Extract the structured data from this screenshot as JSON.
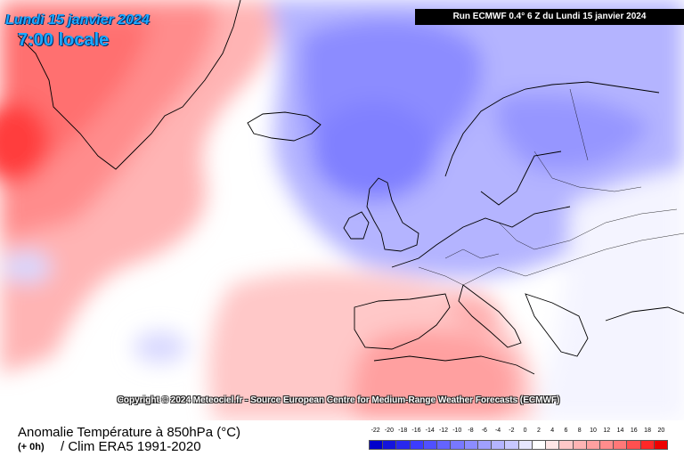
{
  "header": {
    "date_text": "Lundi 15 janvier 2024",
    "time_text": "7:00 locale",
    "run_text": "Run ECMWF 0.4° 6 Z du Lundi 15 janvier 2024"
  },
  "map": {
    "copyright": "Copyright © 2024 Meteociel.fr - Source European Centre for Medium-Range Weather Forecasts (ECMWF)"
  },
  "footer": {
    "title_line1": "Anomalie Température à 850hPa (°C)",
    "lead_time": "(+ 0h)",
    "title_line2": "/ Clim ERA5 1991-2020"
  },
  "legend": {
    "labels": [
      "-22",
      "-20",
      "-18",
      "-16",
      "-14",
      "-12",
      "-10",
      "-8",
      "-6",
      "-4",
      "-2",
      "0",
      "2",
      "4",
      "6",
      "8",
      "10",
      "12",
      "14",
      "16",
      "18",
      "20"
    ],
    "colors": [
      "#0000cc",
      "#1414dd",
      "#2828ee",
      "#3c3cff",
      "#5050ff",
      "#6464ff",
      "#7878ff",
      "#8c8cff",
      "#a0a0ff",
      "#b4b4ff",
      "#c8c8ff",
      "#e6e6ff",
      "#ffffff",
      "#ffe6e6",
      "#ffc8c8",
      "#ffb4b4",
      "#ffa0a0",
      "#ff8c8c",
      "#ff7878",
      "#ff5050",
      "#ff2828",
      "#ee0000"
    ]
  }
}
